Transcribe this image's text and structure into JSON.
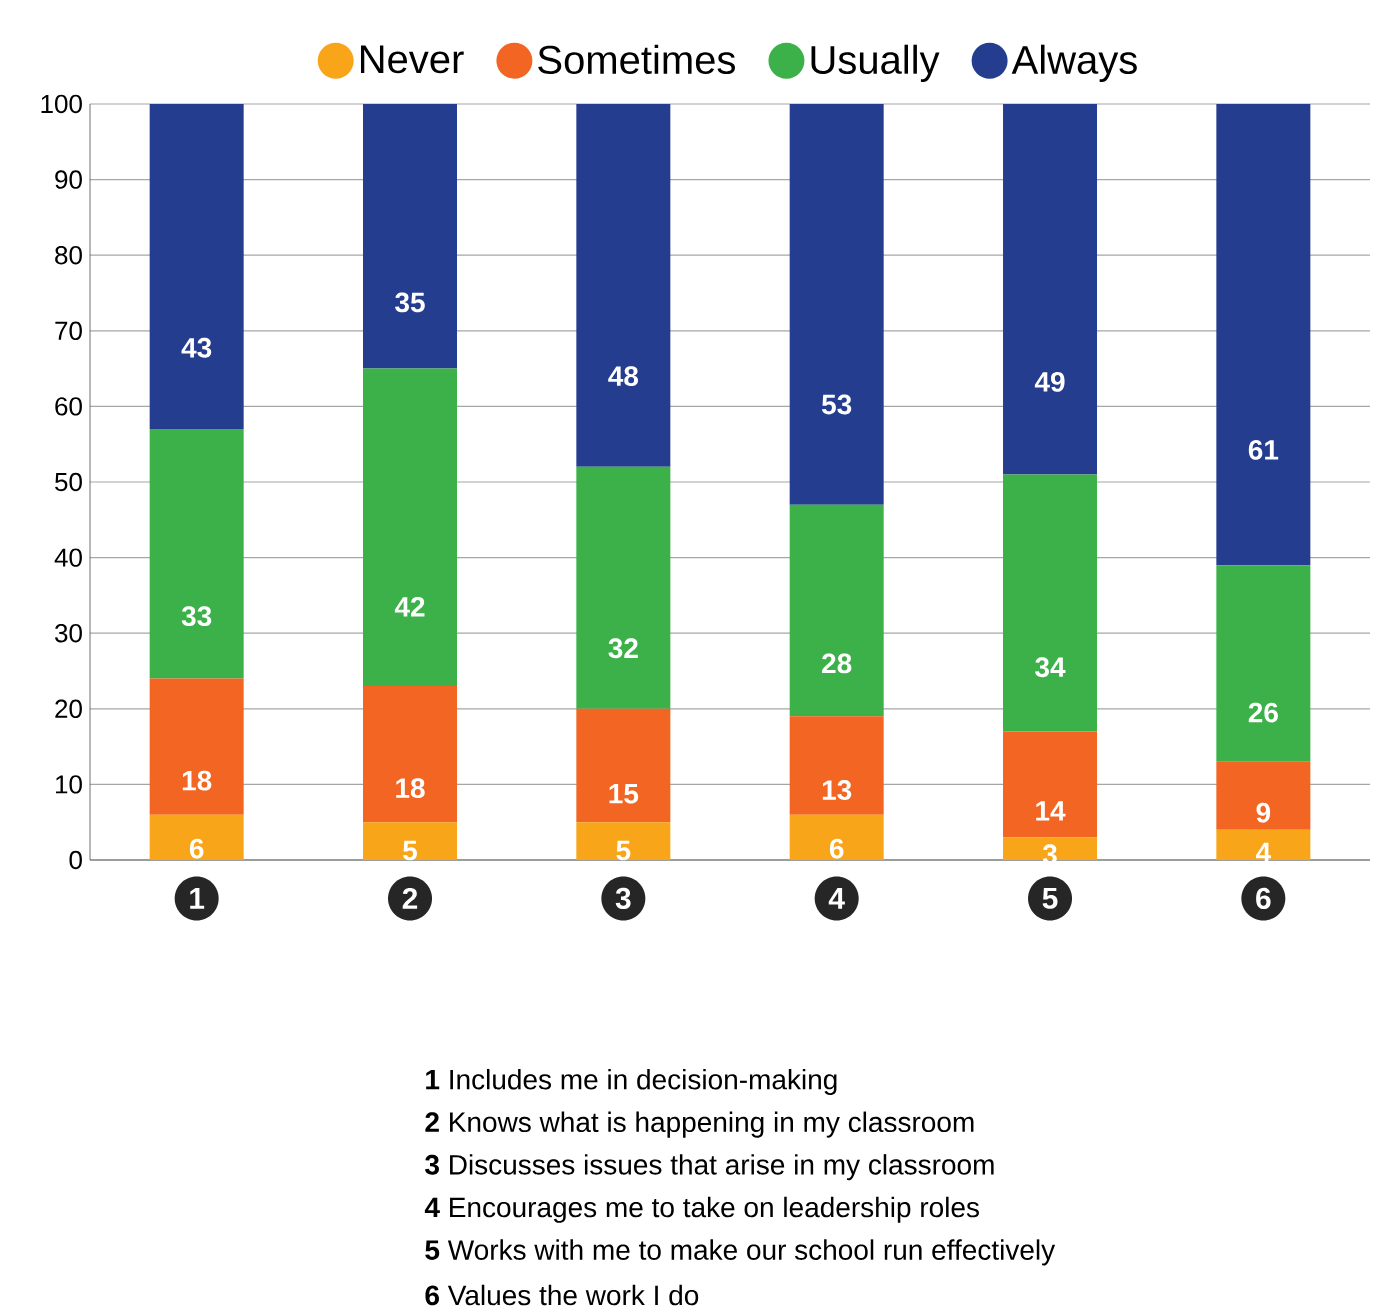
{
  "chart_data": {
    "type": "bar",
    "stacked": true,
    "categories": [
      "1",
      "2",
      "3",
      "4",
      "5",
      "6"
    ],
    "series": [
      {
        "name": "Never",
        "color": "#f9a51a",
        "values": [
          6,
          5,
          5,
          6,
          3,
          4
        ]
      },
      {
        "name": "Sometimes",
        "color": "#f26522",
        "values": [
          18,
          18,
          15,
          13,
          14,
          9
        ]
      },
      {
        "name": "Usually",
        "color": "#3cb049",
        "values": [
          33,
          42,
          32,
          28,
          34,
          26
        ]
      },
      {
        "name": "Always",
        "color": "#253d8f",
        "values": [
          43,
          35,
          48,
          53,
          49,
          61
        ]
      }
    ],
    "ylim": [
      0,
      100
    ],
    "yticks": [
      0,
      10,
      20,
      30,
      40,
      50,
      60,
      70,
      80,
      90,
      100
    ],
    "grid": "y",
    "legend": "top",
    "data_labels": true,
    "annotations": [
      "**1**   Includes me in decision-making",
      "**2**   Knows what is happening in my classroom",
      "**3**   Discusses issues that arise in my classroom",
      "**4**   Encourages me to take on leadership roles",
      "**5**   Works with me to make our school run effectively",
      "**6**   Values the work I do"
    ]
  }
}
